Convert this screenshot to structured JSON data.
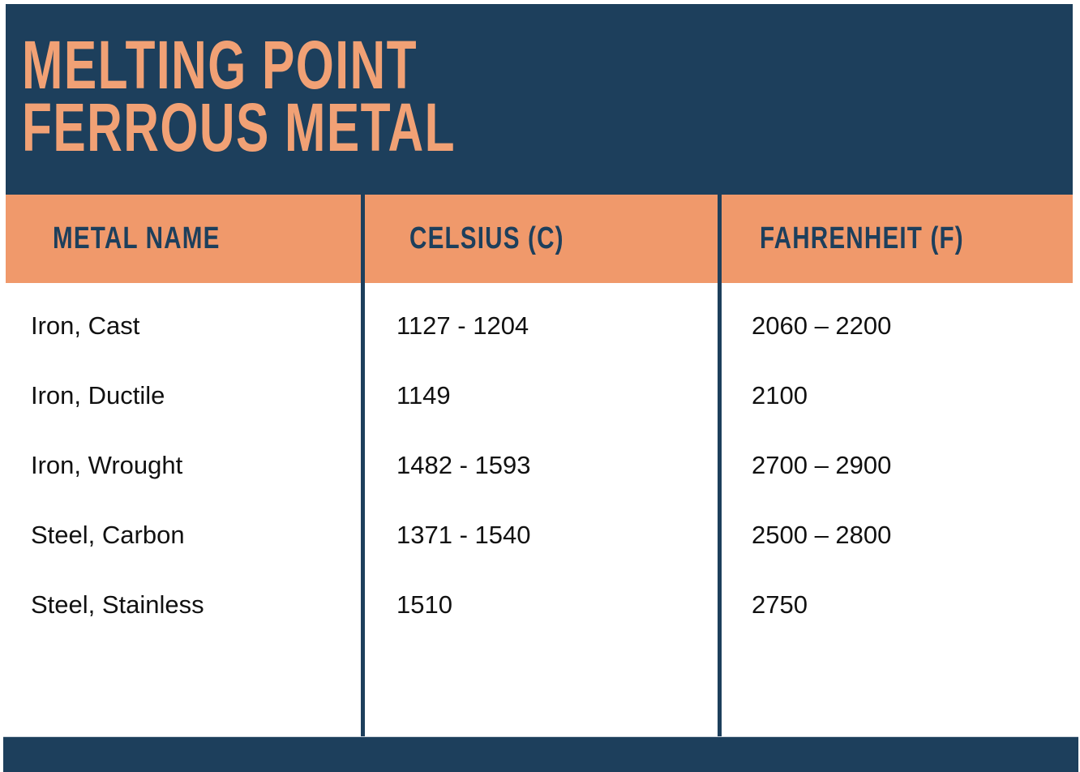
{
  "poster": {
    "title_line1": "MELTING POINT",
    "title_line2": "FERROUS METAL"
  },
  "colors": {
    "navy": "#1D3F5C",
    "orange": "#F0996B",
    "title_orange": "#F1A175",
    "body_text": "#111111"
  },
  "table": {
    "columns": [
      {
        "label": "METAL NAME"
      },
      {
        "label": "CELSIUS (C)"
      },
      {
        "label": "FAHRENHEIT (F)"
      }
    ],
    "rows": [
      {
        "name": "Iron, Cast",
        "celsius": "1127 - 1204",
        "fahrenheit": "2060 – 2200"
      },
      {
        "name": "Iron, Ductile",
        "celsius": "1149",
        "fahrenheit": "2100"
      },
      {
        "name": "Iron, Wrought",
        "celsius": "1482 - 1593",
        "fahrenheit": "2700 – 2900"
      },
      {
        "name": "Steel, Carbon",
        "celsius": "1371 - 1540",
        "fahrenheit": "2500 – 2800"
      },
      {
        "name": "Steel, Stainless",
        "celsius": "1510",
        "fahrenheit": "2750"
      }
    ]
  },
  "chart_data": {
    "type": "table",
    "title": "Melting Point Ferrous Metal",
    "columns": [
      "Metal Name",
      "Celsius (C)",
      "Fahrenheit (F)"
    ],
    "rows": [
      [
        "Iron, Cast",
        "1127 - 1204",
        "2060 – 2200"
      ],
      [
        "Iron, Ductile",
        "1149",
        "2100"
      ],
      [
        "Iron, Wrought",
        "1482 - 1593",
        "2700 – 2900"
      ],
      [
        "Steel, Carbon",
        "1371 - 1540",
        "2500 – 2800"
      ],
      [
        "Steel, Stainless",
        "1510",
        "2750"
      ]
    ],
    "records": [
      {
        "metal": "Iron, Cast",
        "celsius_min": 1127,
        "celsius_max": 1204,
        "fahrenheit_min": 2060,
        "fahrenheit_max": 2200
      },
      {
        "metal": "Iron, Ductile",
        "celsius_min": 1149,
        "celsius_max": 1149,
        "fahrenheit_min": 2100,
        "fahrenheit_max": 2100
      },
      {
        "metal": "Iron, Wrought",
        "celsius_min": 1482,
        "celsius_max": 1593,
        "fahrenheit_min": 2700,
        "fahrenheit_max": 2900
      },
      {
        "metal": "Steel, Carbon",
        "celsius_min": 1371,
        "celsius_max": 1540,
        "fahrenheit_min": 2500,
        "fahrenheit_max": 2800
      },
      {
        "metal": "Steel, Stainless",
        "celsius_min": 1510,
        "celsius_max": 1510,
        "fahrenheit_min": 2750,
        "fahrenheit_max": 2750
      }
    ]
  }
}
